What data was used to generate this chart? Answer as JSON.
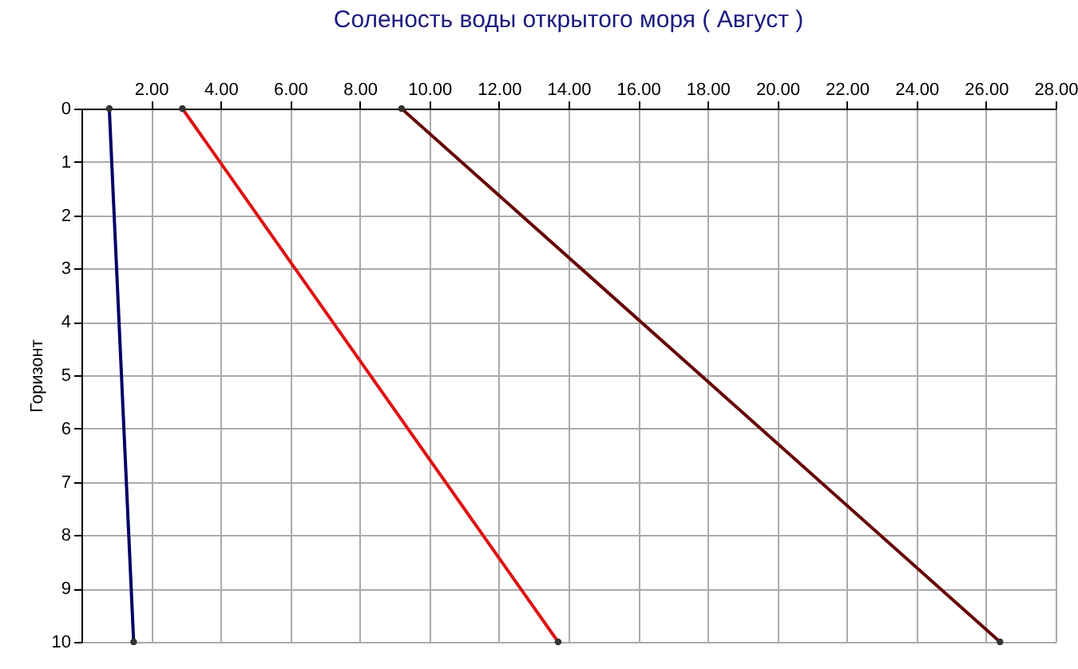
{
  "chart_data": {
    "type": "line",
    "title": "Соленость воды открытого моря    ( Август )",
    "ylabel": "Горизонт",
    "series": [
      {
        "color": "#000066",
        "x": [
          0.8,
          1.5
        ],
        "values": [
          0,
          10
        ]
      },
      {
        "color": "#e01010",
        "x": [
          2.9,
          13.7
        ],
        "values": [
          0,
          10
        ]
      },
      {
        "color": "#660000",
        "x": [
          9.2,
          26.4
        ],
        "values": [
          0,
          10
        ]
      }
    ],
    "xlim": [
      0,
      28
    ],
    "xticks": [
      {
        "value": 2,
        "label": "2.00"
      },
      {
        "value": 4,
        "label": "4.00"
      },
      {
        "value": 6,
        "label": "6.00"
      },
      {
        "value": 8,
        "label": "8.00"
      },
      {
        "value": 10,
        "label": "10.00"
      },
      {
        "value": 12,
        "label": "12.00"
      },
      {
        "value": 14,
        "label": "14.00"
      },
      {
        "value": 16,
        "label": "16.00"
      },
      {
        "value": 18,
        "label": "18.00"
      },
      {
        "value": 20,
        "label": "20.00"
      },
      {
        "value": 22,
        "label": "22.00"
      },
      {
        "value": 24,
        "label": "24.00"
      },
      {
        "value": 26,
        "label": "26.00"
      },
      {
        "value": 28,
        "label": "28.00"
      }
    ],
    "ylim": [
      10,
      0
    ],
    "yticks": [
      0,
      1,
      2,
      3,
      4,
      5,
      6,
      7,
      8,
      9,
      10
    ],
    "grid": true,
    "marker": "circle",
    "line_style": "solid",
    "legend": false
  }
}
